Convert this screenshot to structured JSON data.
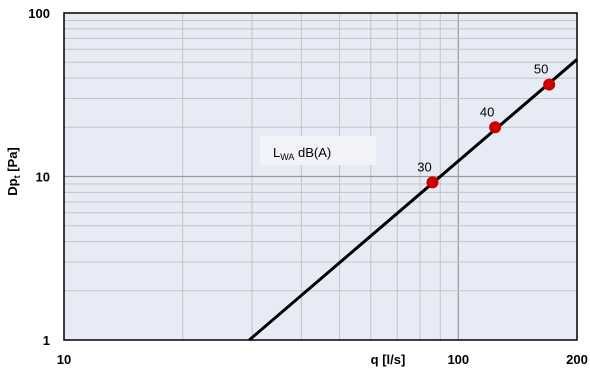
{
  "chart_data": {
    "type": "scatter",
    "x_scale": "log",
    "y_scale": "log",
    "xlim": [
      10,
      200
    ],
    "ylim": [
      1,
      100
    ],
    "x_ticks": [
      "10",
      "100",
      "200"
    ],
    "y_ticks": [
      "100",
      "10",
      "1"
    ],
    "xlabel": "q [l/s]",
    "ylabel_main": "Dp",
    "ylabel_sub": "t",
    "ylabel_unit": " [Pa]",
    "grid": true,
    "annotation": {
      "main": "L",
      "sub": "WA",
      "rest": " dB(A)"
    },
    "line": {
      "x": [
        29.5,
        200
      ],
      "y": [
        1,
        52
      ]
    },
    "points": [
      {
        "x": 86,
        "y": 9.2,
        "label": "30"
      },
      {
        "x": 124,
        "y": 20,
        "label": "40"
      },
      {
        "x": 170,
        "y": 36.5,
        "label": "50"
      }
    ],
    "colors": {
      "plot_bg": "#e7ebf5",
      "grid_minor": "#c4c4c4",
      "grid_major": "#9a9a9a",
      "line": "#000000",
      "marker": "#cc0000",
      "annotation_bg": "#f1f3f8"
    }
  }
}
